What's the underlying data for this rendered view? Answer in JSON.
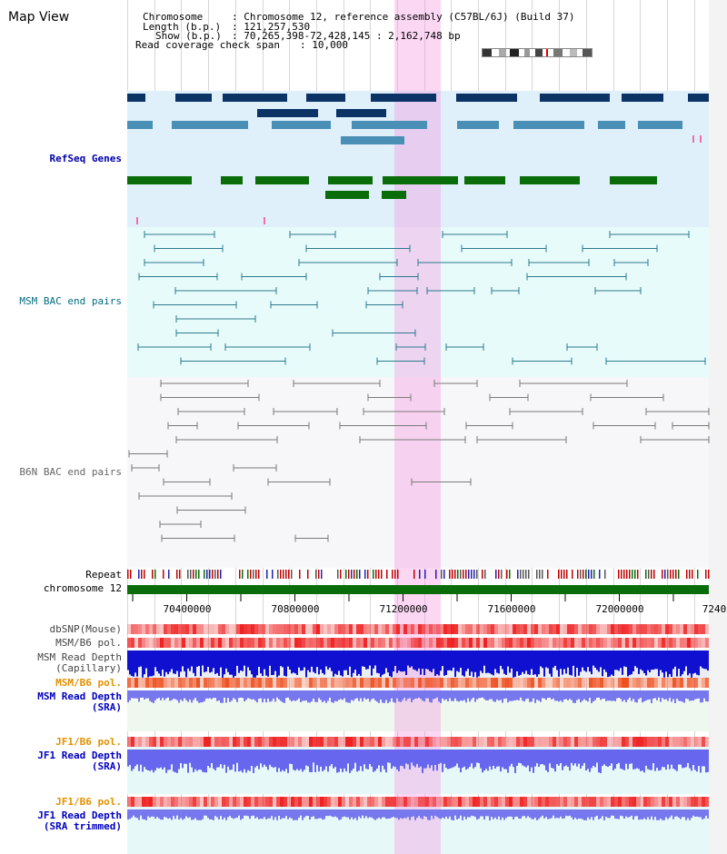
{
  "title": "Map View",
  "header": {
    "chromosome_key": "Chromosome",
    "chromosome_val": ": Chromosome 12, reference assembly (C57BL/6J) (Build 37)",
    "length_key": "Length (b.p.)",
    "length_val": ": 121,257,530",
    "show_key": "Show (b.p.)",
    "show_val": ": 70,265,398-72,428,145 : 2,162,748 bp",
    "coverage_key": "Read coverage check span",
    "coverage_val": ": 10,000"
  },
  "tracks": {
    "refseq": "RefSeq Genes",
    "msm_bac": "MSM BAC end pairs",
    "b6n_bac": "B6N BAC end pairs",
    "repeat": "Repeat",
    "chromosome": "chromosome 12",
    "dbsnp": "dbSNP(Mouse)",
    "msm_b6_pol": "MSM/B6 pol.",
    "msm_depth_1": "MSM Read Depth",
    "msm_depth_2": "(Capillary)",
    "msm_b6_pol_sra": "MSM/B6 pol.",
    "msm_sra_1": "MSM Read Depth",
    "msm_sra_2": "(SRA)",
    "jf1_pol": "JF1/B6 pol.",
    "jf1_depth_1": "JF1 Read Depth",
    "jf1_depth_2": "(SRA)",
    "jf1_pol2": "JF1/B6 pol.",
    "jf1_trim_1": "JF1 Read Depth",
    "jf1_trim_2": "(SRA trimmed)"
  },
  "scale": {
    "ticks": [
      "70400000",
      "70800000",
      "71200000",
      "71600000",
      "72000000",
      "7240"
    ]
  },
  "colors": {
    "refseq_label": "#0000aa",
    "msm_label": "#006d80",
    "b6n_label": "#666666",
    "pol_label": "#e39000",
    "depth_label": "#0000c0"
  }
}
